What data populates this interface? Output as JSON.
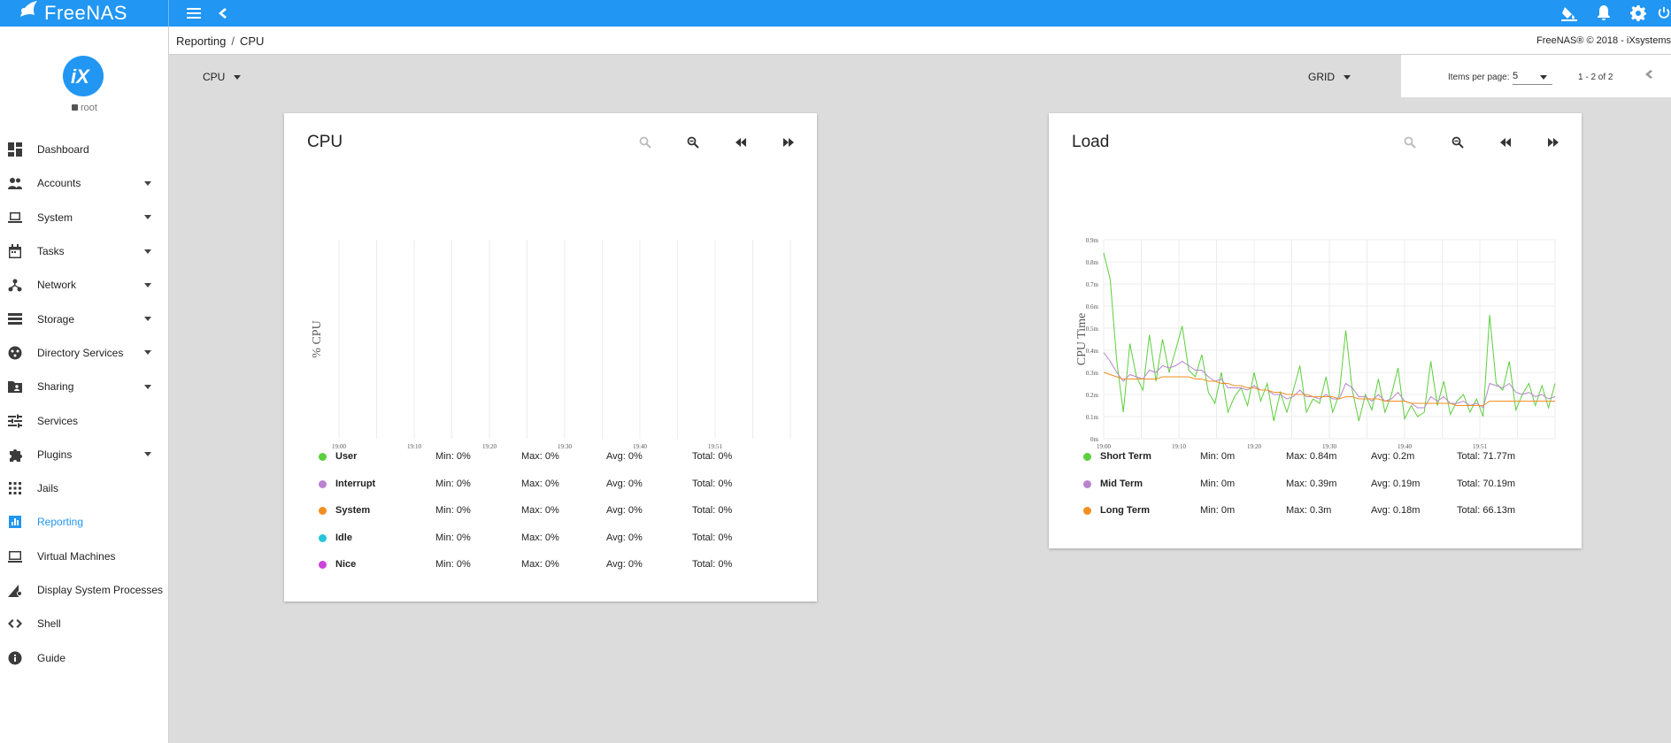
{
  "app": {
    "title": "FreeNAS"
  },
  "sidebar": {
    "user": "root",
    "items": [
      {
        "label": "Dashboard",
        "icon": "dashboard-icon",
        "expandable": false,
        "active": false
      },
      {
        "label": "Accounts",
        "icon": "people-icon",
        "expandable": true,
        "active": false
      },
      {
        "label": "System",
        "icon": "laptop-icon",
        "expandable": true,
        "active": false
      },
      {
        "label": "Tasks",
        "icon": "calendar-icon",
        "expandable": true,
        "active": false
      },
      {
        "label": "Network",
        "icon": "network-icon",
        "expandable": true,
        "active": false
      },
      {
        "label": "Storage",
        "icon": "storage-icon",
        "expandable": true,
        "active": false
      },
      {
        "label": "Directory Services",
        "icon": "directory-icon",
        "expandable": true,
        "active": false
      },
      {
        "label": "Sharing",
        "icon": "folder-shared-icon",
        "expandable": true,
        "active": false
      },
      {
        "label": "Services",
        "icon": "tune-icon",
        "expandable": false,
        "active": false
      },
      {
        "label": "Plugins",
        "icon": "puzzle-icon",
        "expandable": true,
        "active": false
      },
      {
        "label": "Jails",
        "icon": "apps-grid-icon",
        "expandable": false,
        "active": false
      },
      {
        "label": "Reporting",
        "icon": "chart-icon",
        "expandable": false,
        "active": true
      },
      {
        "label": "Virtual Machines",
        "icon": "computer-icon",
        "expandable": false,
        "active": false
      },
      {
        "label": "Display System Processes",
        "icon": "processes-icon",
        "expandable": false,
        "active": false
      },
      {
        "label": "Shell",
        "icon": "code-icon",
        "expandable": false,
        "active": false
      },
      {
        "label": "Guide",
        "icon": "info-icon",
        "expandable": false,
        "active": false
      }
    ]
  },
  "breadcrumb": {
    "parent": "Reporting",
    "sep": "/",
    "current": "CPU"
  },
  "copyright": "FreeNAS® © 2018 - iXsystems",
  "toolbar": {
    "report_select": "CPU",
    "view_select": "GRID"
  },
  "pager": {
    "items_per_page_label": "Items per page:",
    "items_per_page": "5",
    "range": "1 - 2 of 2"
  },
  "colors": {
    "accent": "#2196f3",
    "green": "#5ccf3c",
    "purple": "#b983cf",
    "orange": "#f28f21",
    "teal": "#26c6da",
    "magenta": "#cc44dd"
  },
  "cpu_card": {
    "title": "CPU",
    "ylabel": "% CPU",
    "xticks": [
      "19:00",
      "19:10",
      "19:20",
      "19:30",
      "19:40",
      "19:51"
    ],
    "legend": [
      {
        "name": "User",
        "color": "#5ccf3c",
        "min": "Min: 0%",
        "max": "Max: 0%",
        "avg": "Avg: 0%",
        "total": "Total: 0%"
      },
      {
        "name": "Interrupt",
        "color": "#b983cf",
        "min": "Min: 0%",
        "max": "Max: 0%",
        "avg": "Avg: 0%",
        "total": "Total: 0%"
      },
      {
        "name": "System",
        "color": "#f28f21",
        "min": "Min: 0%",
        "max": "Max: 0%",
        "avg": "Avg: 0%",
        "total": "Total: 0%"
      },
      {
        "name": "Idle",
        "color": "#26c6da",
        "min": "Min: 0%",
        "max": "Max: 0%",
        "avg": "Avg: 0%",
        "total": "Total: 0%"
      },
      {
        "name": "Nice",
        "color": "#cc44dd",
        "min": "Min: 0%",
        "max": "Max: 0%",
        "avg": "Avg: 0%",
        "total": "Total: 0%"
      }
    ]
  },
  "load_card": {
    "title": "Load",
    "ylabel": "CPU Time",
    "legend": [
      {
        "name": "Short Term",
        "color": "#5ccf3c",
        "min": "Min: 0m",
        "max": "Max: 0.84m",
        "avg": "Avg: 0.2m",
        "total": "Total: 71.77m"
      },
      {
        "name": "Mid Term",
        "color": "#b983cf",
        "min": "Min: 0m",
        "max": "Max: 0.39m",
        "avg": "Avg: 0.19m",
        "total": "Total: 70.19m"
      },
      {
        "name": "Long Term",
        "color": "#f28f21",
        "min": "Min: 0m",
        "max": "Max: 0.3m",
        "avg": "Avg: 0.18m",
        "total": "Total: 66.13m"
      }
    ]
  },
  "chart_data": [
    {
      "type": "line",
      "title": "CPU",
      "ylabel": "% CPU",
      "xlabel": "",
      "x_ticks": [
        "19:00",
        "19:10",
        "19:20",
        "19:30",
        "19:40",
        "19:51"
      ],
      "grid": true,
      "series": [
        {
          "name": "User",
          "values": []
        },
        {
          "name": "Interrupt",
          "values": []
        },
        {
          "name": "System",
          "values": []
        },
        {
          "name": "Idle",
          "values": []
        },
        {
          "name": "Nice",
          "values": []
        }
      ]
    },
    {
      "type": "line",
      "title": "Load",
      "ylabel": "CPU Time",
      "xlabel": "",
      "x_ticks": [
        "19:00",
        "19:10",
        "19:20",
        "19:30",
        "19:40",
        "19:51"
      ],
      "y_ticks": [
        "0m",
        "0.1m",
        "0.2m",
        "0.3m",
        "0.4m",
        "0.5m",
        "0.6m",
        "0.7m",
        "0.8m",
        "0.9m"
      ],
      "ylim": [
        0,
        0.9
      ],
      "grid": true,
      "series": [
        {
          "name": "Short Term",
          "values": [
            0.84,
            0.72,
            0.35,
            0.12,
            0.43,
            0.28,
            0.22,
            0.47,
            0.26,
            0.45,
            0.3,
            0.4,
            0.51,
            0.31,
            0.28,
            0.38,
            0.21,
            0.16,
            0.3,
            0.12,
            0.19,
            0.23,
            0.15,
            0.3,
            0.17,
            0.25,
            0.08,
            0.21,
            0.12,
            0.22,
            0.33,
            0.12,
            0.18,
            0.16,
            0.28,
            0.12,
            0.2,
            0.49,
            0.22,
            0.08,
            0.2,
            0.13,
            0.27,
            0.12,
            0.2,
            0.32,
            0.09,
            0.15,
            0.1,
            0.12,
            0.35,
            0.15,
            0.26,
            0.11,
            0.17,
            0.2,
            0.12,
            0.18,
            0.1,
            0.56,
            0.25,
            0.22,
            0.35,
            0.13,
            0.2,
            0.25,
            0.15,
            0.24,
            0.14,
            0.25
          ]
        },
        {
          "name": "Mid Term",
          "values": [
            0.39,
            0.35,
            0.3,
            0.26,
            0.29,
            0.28,
            0.27,
            0.31,
            0.3,
            0.33,
            0.32,
            0.33,
            0.35,
            0.33,
            0.31,
            0.31,
            0.28,
            0.26,
            0.27,
            0.23,
            0.23,
            0.23,
            0.22,
            0.24,
            0.22,
            0.22,
            0.2,
            0.2,
            0.18,
            0.19,
            0.22,
            0.19,
            0.19,
            0.18,
            0.2,
            0.18,
            0.18,
            0.25,
            0.23,
            0.19,
            0.19,
            0.17,
            0.2,
            0.17,
            0.18,
            0.21,
            0.17,
            0.16,
            0.14,
            0.14,
            0.19,
            0.17,
            0.19,
            0.16,
            0.16,
            0.17,
            0.15,
            0.16,
            0.14,
            0.25,
            0.24,
            0.23,
            0.25,
            0.21,
            0.2,
            0.21,
            0.19,
            0.2,
            0.18,
            0.19
          ]
        },
        {
          "name": "Long Term",
          "values": [
            0.3,
            0.29,
            0.28,
            0.27,
            0.27,
            0.27,
            0.27,
            0.27,
            0.27,
            0.28,
            0.28,
            0.28,
            0.28,
            0.28,
            0.27,
            0.27,
            0.26,
            0.26,
            0.25,
            0.25,
            0.24,
            0.24,
            0.23,
            0.23,
            0.22,
            0.22,
            0.21,
            0.21,
            0.2,
            0.2,
            0.2,
            0.2,
            0.19,
            0.19,
            0.19,
            0.19,
            0.18,
            0.19,
            0.19,
            0.18,
            0.18,
            0.18,
            0.18,
            0.17,
            0.17,
            0.17,
            0.17,
            0.16,
            0.16,
            0.16,
            0.16,
            0.16,
            0.16,
            0.16,
            0.15,
            0.15,
            0.15,
            0.15,
            0.15,
            0.17,
            0.17,
            0.17,
            0.17,
            0.17,
            0.17,
            0.17,
            0.17,
            0.17,
            0.17,
            0.17
          ]
        }
      ]
    }
  ]
}
